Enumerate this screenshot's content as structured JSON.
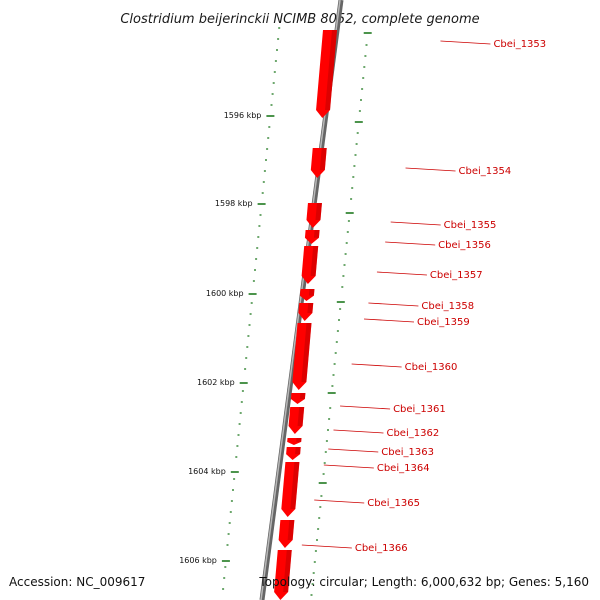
{
  "title": "Clostridium beijerinckii NCIMB 8052, complete genome",
  "footer": {
    "accession": "Accession: NC_009617",
    "summary": "Topology: circular; Length: 6,000,632 bp; Genes: 5,160"
  },
  "colors": {
    "gene": "#ff0000",
    "gene_label": "#cc0000",
    "tick": "#1f7a1f",
    "backbone": "#808080"
  },
  "position_scale": {
    "labels": [
      "1596 kbp",
      "1598 kbp",
      "1600 kbp",
      "1602 kbp",
      "1604 kbp",
      "1606 kbp"
    ]
  },
  "genes": [
    {
      "locus": "Cbei_1353"
    },
    {
      "locus": "Cbei_1354"
    },
    {
      "locus": "Cbei_1355"
    },
    {
      "locus": "Cbei_1356"
    },
    {
      "locus": "Cbei_1357"
    },
    {
      "locus": "Cbei_1358"
    },
    {
      "locus": "Cbei_1359"
    },
    {
      "locus": "Cbei_1360"
    },
    {
      "locus": "Cbei_1361"
    },
    {
      "locus": "Cbei_1362"
    },
    {
      "locus": "Cbei_1363"
    },
    {
      "locus": "Cbei_1364"
    },
    {
      "locus": "Cbei_1365"
    },
    {
      "locus": "Cbei_1366"
    }
  ]
}
